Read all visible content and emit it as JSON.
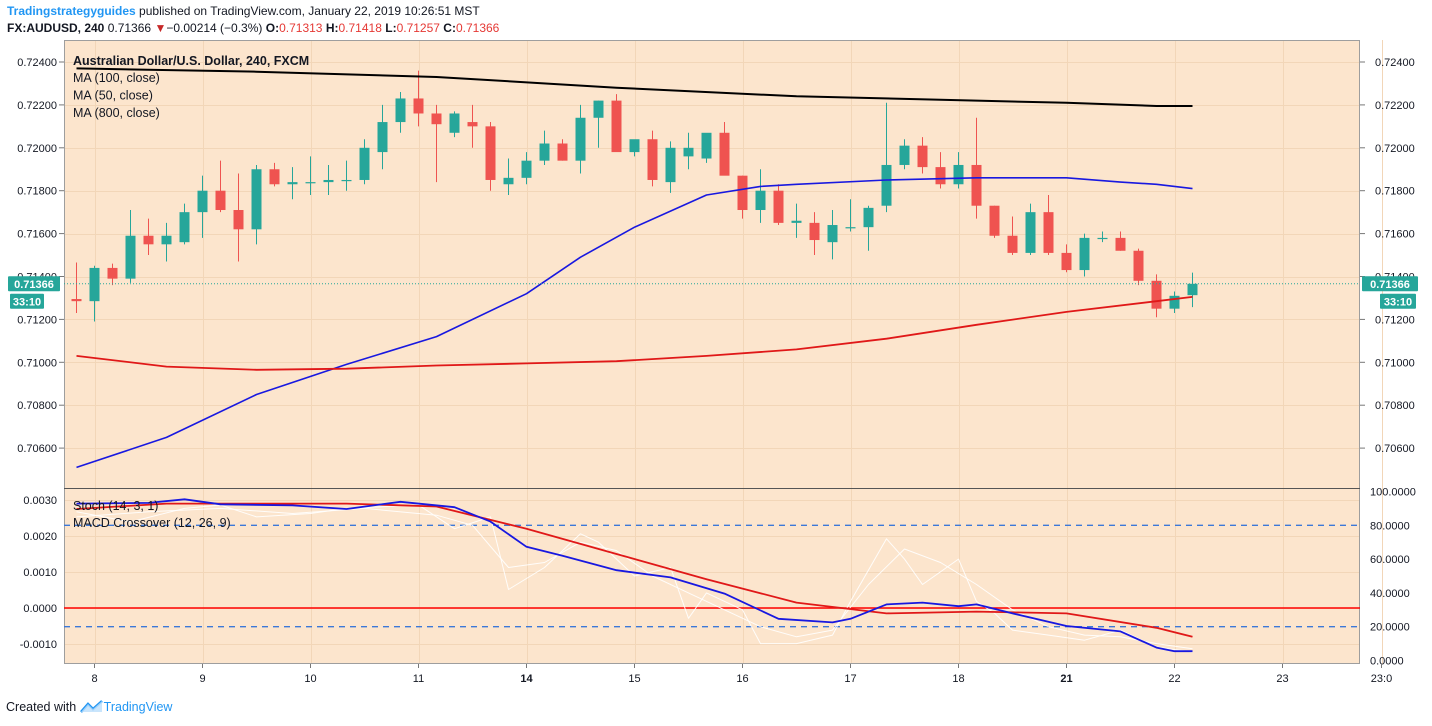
{
  "header": {
    "author": "Tradingstrategyguides",
    "published": "published on TradingView.com, January 22, 2019 10:26:51 MST",
    "symbol": "FX:AUDUSD, 240",
    "last": "0.71366",
    "arrow": "▼",
    "change": "−0.00214 (−0.3%)",
    "o_label": "O:",
    "o_value": "0.71313",
    "h_label": "H:",
    "h_value": "0.71418",
    "l_label": "L:",
    "l_value": "0.71257",
    "c_label": "C:",
    "c_value": "0.71366"
  },
  "footer": {
    "created_with": "Created with",
    "brand": "TradingView"
  },
  "colors": {
    "bg": "#fce5cd",
    "up": "#26a69a",
    "down": "#ef5350",
    "ma100": "#000000",
    "ma50": "#1818e0",
    "ma800": "#e01818",
    "macd": "#1818e0",
    "signal": "#e01818",
    "stoch": "#ffffff",
    "band": "#3c78d8"
  },
  "chart_data": [
    {
      "type": "candlestick",
      "title": "Australian Dollar/U.S. Dollar, 240, FXCM",
      "legend": [
        "MA (100, close)",
        "MA (50, close)",
        "MA (800, close)"
      ],
      "x_ticks": [
        {
          "label": "8",
          "bar": 1,
          "bold": false
        },
        {
          "label": "9",
          "bar": 7,
          "bold": false
        },
        {
          "label": "10",
          "bar": 13,
          "bold": false
        },
        {
          "label": "11",
          "bar": 19,
          "bold": false
        },
        {
          "label": "14",
          "bar": 25,
          "bold": true
        },
        {
          "label": "15",
          "bar": 31,
          "bold": false
        },
        {
          "label": "16",
          "bar": 37,
          "bold": false
        },
        {
          "label": "17",
          "bar": 43,
          "bold": false
        },
        {
          "label": "18",
          "bar": 49,
          "bold": false
        },
        {
          "label": "21",
          "bar": 55,
          "bold": true
        },
        {
          "label": "22",
          "bar": 61,
          "bold": false
        },
        {
          "label": "23",
          "bar": 67,
          "bold": false
        },
        {
          "label": "23:0",
          "bar": 72.5,
          "bold": false
        }
      ],
      "y_ticks": [
        "0.72400",
        "0.72200",
        "0.72000",
        "0.71800",
        "0.71600",
        "0.71400",
        "0.71200",
        "0.71000",
        "0.70800",
        "0.70600"
      ],
      "ylim": [
        0.7048,
        0.725
      ],
      "last_price": {
        "label": "0.71366",
        "value": 0.71366,
        "countdown": "33:10"
      },
      "candles": [
        {
          "o": 0.71295,
          "h": 0.71465,
          "l": 0.7123,
          "c": 0.71285
        },
        {
          "o": 0.71285,
          "h": 0.7145,
          "l": 0.7119,
          "c": 0.7144
        },
        {
          "o": 0.7144,
          "h": 0.7146,
          "l": 0.7136,
          "c": 0.7139
        },
        {
          "o": 0.7139,
          "h": 0.7171,
          "l": 0.7137,
          "c": 0.7159
        },
        {
          "o": 0.7159,
          "h": 0.7167,
          "l": 0.715,
          "c": 0.7155
        },
        {
          "o": 0.7155,
          "h": 0.7165,
          "l": 0.7147,
          "c": 0.7159
        },
        {
          "o": 0.7156,
          "h": 0.7174,
          "l": 0.7155,
          "c": 0.717
        },
        {
          "o": 0.717,
          "h": 0.7187,
          "l": 0.7158,
          "c": 0.718
        },
        {
          "o": 0.718,
          "h": 0.7194,
          "l": 0.717,
          "c": 0.7171
        },
        {
          "o": 0.7171,
          "h": 0.7188,
          "l": 0.7147,
          "c": 0.7162
        },
        {
          "o": 0.7162,
          "h": 0.7192,
          "l": 0.7155,
          "c": 0.719
        },
        {
          "o": 0.719,
          "h": 0.7193,
          "l": 0.7182,
          "c": 0.7183
        },
        {
          "o": 0.7183,
          "h": 0.7191,
          "l": 0.7176,
          "c": 0.7184
        },
        {
          "o": 0.7184,
          "h": 0.7196,
          "l": 0.7178,
          "c": 0.7184
        },
        {
          "o": 0.7184,
          "h": 0.7192,
          "l": 0.7178,
          "c": 0.7185
        },
        {
          "o": 0.7185,
          "h": 0.7194,
          "l": 0.718,
          "c": 0.7185
        },
        {
          "o": 0.7185,
          "h": 0.7204,
          "l": 0.7183,
          "c": 0.72
        },
        {
          "o": 0.7198,
          "h": 0.722,
          "l": 0.719,
          "c": 0.7212
        },
        {
          "o": 0.7212,
          "h": 0.7226,
          "l": 0.7207,
          "c": 0.7223
        },
        {
          "o": 0.7223,
          "h": 0.7236,
          "l": 0.721,
          "c": 0.7216
        },
        {
          "o": 0.7216,
          "h": 0.722,
          "l": 0.7184,
          "c": 0.7211
        },
        {
          "o": 0.7207,
          "h": 0.7217,
          "l": 0.7205,
          "c": 0.7216
        },
        {
          "o": 0.7212,
          "h": 0.722,
          "l": 0.72,
          "c": 0.721
        },
        {
          "o": 0.721,
          "h": 0.7212,
          "l": 0.718,
          "c": 0.7185
        },
        {
          "o": 0.7183,
          "h": 0.7195,
          "l": 0.7178,
          "c": 0.7186
        },
        {
          "o": 0.7186,
          "h": 0.7198,
          "l": 0.7183,
          "c": 0.7194
        },
        {
          "o": 0.7194,
          "h": 0.7208,
          "l": 0.7192,
          "c": 0.7202
        },
        {
          "o": 0.7202,
          "h": 0.7204,
          "l": 0.7194,
          "c": 0.7194
        },
        {
          "o": 0.7194,
          "h": 0.722,
          "l": 0.7188,
          "c": 0.7214
        },
        {
          "o": 0.7214,
          "h": 0.7222,
          "l": 0.72,
          "c": 0.7222
        },
        {
          "o": 0.7222,
          "h": 0.7225,
          "l": 0.72,
          "c": 0.7198
        },
        {
          "o": 0.7198,
          "h": 0.7203,
          "l": 0.7196,
          "c": 0.7204
        },
        {
          "o": 0.7204,
          "h": 0.7208,
          "l": 0.7182,
          "c": 0.7185
        },
        {
          "o": 0.7184,
          "h": 0.7203,
          "l": 0.7179,
          "c": 0.72
        },
        {
          "o": 0.7196,
          "h": 0.7207,
          "l": 0.719,
          "c": 0.72
        },
        {
          "o": 0.7195,
          "h": 0.7206,
          "l": 0.7193,
          "c": 0.7207
        },
        {
          "o": 0.7207,
          "h": 0.7212,
          "l": 0.7188,
          "c": 0.7187
        },
        {
          "o": 0.7187,
          "h": 0.7187,
          "l": 0.7167,
          "c": 0.7171
        },
        {
          "o": 0.7171,
          "h": 0.719,
          "l": 0.7165,
          "c": 0.718
        },
        {
          "o": 0.718,
          "h": 0.7183,
          "l": 0.7164,
          "c": 0.7165
        },
        {
          "o": 0.7165,
          "h": 0.7174,
          "l": 0.7158,
          "c": 0.7166
        },
        {
          "o": 0.7165,
          "h": 0.717,
          "l": 0.715,
          "c": 0.7157
        },
        {
          "o": 0.7156,
          "h": 0.7171,
          "l": 0.7148,
          "c": 0.7164
        },
        {
          "o": 0.7163,
          "h": 0.7176,
          "l": 0.7161,
          "c": 0.7163
        },
        {
          "o": 0.7163,
          "h": 0.7173,
          "l": 0.7152,
          "c": 0.7172
        },
        {
          "o": 0.7173,
          "h": 0.7221,
          "l": 0.717,
          "c": 0.7192
        },
        {
          "o": 0.7192,
          "h": 0.7204,
          "l": 0.719,
          "c": 0.7201
        },
        {
          "o": 0.7201,
          "h": 0.7205,
          "l": 0.7188,
          "c": 0.7191
        },
        {
          "o": 0.7191,
          "h": 0.7198,
          "l": 0.7181,
          "c": 0.7183
        },
        {
          "o": 0.7183,
          "h": 0.7198,
          "l": 0.7181,
          "c": 0.7192
        },
        {
          "o": 0.7192,
          "h": 0.7214,
          "l": 0.7167,
          "c": 0.7173
        },
        {
          "o": 0.7173,
          "h": 0.7173,
          "l": 0.7158,
          "c": 0.7159
        },
        {
          "o": 0.7159,
          "h": 0.7168,
          "l": 0.715,
          "c": 0.7151
        },
        {
          "o": 0.7151,
          "h": 0.7174,
          "l": 0.715,
          "c": 0.717
        },
        {
          "o": 0.717,
          "h": 0.7178,
          "l": 0.715,
          "c": 0.7151
        },
        {
          "o": 0.7151,
          "h": 0.7155,
          "l": 0.7142,
          "c": 0.7143
        },
        {
          "o": 0.7143,
          "h": 0.716,
          "l": 0.714,
          "c": 0.7158
        },
        {
          "o": 0.7158,
          "h": 0.7161,
          "l": 0.7156,
          "c": 0.7158
        },
        {
          "o": 0.7158,
          "h": 0.7161,
          "l": 0.7152,
          "c": 0.7152
        },
        {
          "o": 0.7152,
          "h": 0.7153,
          "l": 0.7136,
          "c": 0.7138
        },
        {
          "o": 0.7138,
          "h": 0.7141,
          "l": 0.7121,
          "c": 0.7125
        },
        {
          "o": 0.7125,
          "h": 0.7133,
          "l": 0.7123,
          "c": 0.7131
        },
        {
          "o": 0.71313,
          "h": 0.71418,
          "l": 0.71257,
          "c": 0.71366
        }
      ],
      "series": [
        {
          "name": "MA (100, close)",
          "color": "#000000",
          "bars": [
            0,
            10,
            20,
            30,
            40,
            50,
            55,
            60,
            62
          ],
          "values": [
            0.7237,
            0.72355,
            0.7233,
            0.7228,
            0.7224,
            0.7222,
            0.7221,
            0.72195,
            0.72195
          ]
        },
        {
          "name": "MA (50, close)",
          "color": "#1818e0",
          "bars": [
            0,
            5,
            10,
            15,
            20,
            25,
            28,
            31,
            35,
            38,
            40,
            45,
            50,
            55,
            58,
            60,
            62
          ],
          "values": [
            0.7051,
            0.7065,
            0.7085,
            0.7099,
            0.7112,
            0.7132,
            0.7149,
            0.7163,
            0.7178,
            0.7182,
            0.7183,
            0.7185,
            0.7186,
            0.7186,
            0.7184,
            0.7183,
            0.7181
          ]
        },
        {
          "name": "MA (800, close)",
          "color": "#e01818",
          "bars": [
            0,
            5,
            10,
            15,
            20,
            25,
            30,
            35,
            40,
            45,
            50,
            55,
            60,
            62
          ],
          "values": [
            0.7103,
            0.7098,
            0.70965,
            0.7097,
            0.70985,
            0.70995,
            0.71005,
            0.7103,
            0.7106,
            0.7111,
            0.71175,
            0.71235,
            0.71285,
            0.71305
          ]
        }
      ]
    },
    {
      "type": "line",
      "legend": [
        "Stoch (14, 3, 1)",
        "MACD Crossover (12, 26, 9)"
      ],
      "left_ticks": [
        "0.0030",
        "0.0020",
        "0.0010",
        "0.0000",
        "-0.0010"
      ],
      "left_lim": [
        -0.00125,
        0.00305
      ],
      "right_ticks": [
        "100.0000",
        "80.0000",
        "60.0000",
        "40.0000",
        "20.0000",
        "0.0000"
      ],
      "right_lim": [
        0,
        100
      ],
      "stoch_bands": [
        20,
        80
      ],
      "macd": {
        "name": "MACD",
        "color": "#1818e0",
        "bars": [
          0,
          4,
          6,
          8,
          12,
          15,
          18,
          21,
          23,
          25,
          27,
          30,
          33,
          36,
          39,
          42,
          43,
          45,
          47,
          49,
          50,
          52,
          55,
          58,
          60,
          61,
          62
        ],
        "values": [
          0.0029,
          0.00292,
          0.00302,
          0.00288,
          0.00285,
          0.00275,
          0.00295,
          0.0028,
          0.0024,
          0.0017,
          0.00145,
          0.00105,
          0.00085,
          0.0004,
          -0.0003,
          -0.0004,
          -0.0003,
          0.0001,
          0.00015,
          5e-05,
          0.0001,
          -0.00015,
          -0.0005,
          -0.00065,
          -0.0011,
          -0.0012,
          -0.0012
        ]
      },
      "signal": {
        "name": "Signal",
        "color": "#e01818",
        "bars": [
          0,
          5,
          10,
          15,
          20,
          25,
          30,
          35,
          40,
          45,
          50,
          55,
          60,
          62
        ],
        "values": [
          0.00275,
          0.0029,
          0.0029,
          0.0029,
          0.00282,
          0.0022,
          0.0015,
          0.0008,
          0.00015,
          -0.00015,
          -0.0001,
          -0.00015,
          -0.00055,
          -0.0008
        ]
      },
      "zero_line": 0,
      "stoch_k": {
        "bars": [
          0,
          3,
          6,
          8,
          10,
          13,
          15,
          19,
          21,
          23,
          24,
          26,
          28,
          29,
          31,
          33,
          34,
          35,
          37,
          38,
          40,
          42,
          43,
          45,
          46,
          47,
          49,
          50,
          51,
          52,
          54,
          56,
          58,
          60,
          62
        ],
        "values": [
          88,
          82,
          90,
          92,
          85,
          87,
          90,
          92,
          78,
          85,
          42,
          55,
          75,
          70,
          50,
          55,
          25,
          40,
          30,
          10,
          10,
          15,
          35,
          72,
          60,
          45,
          60,
          35,
          28,
          18,
          15,
          12,
          18,
          8,
          5
        ]
      },
      "stoch_d": {
        "bars": [
          0,
          4,
          8,
          12,
          16,
          20,
          22,
          24,
          26,
          28,
          30,
          32,
          34,
          36,
          38,
          40,
          42,
          44,
          46,
          48,
          50,
          52,
          54,
          56,
          58,
          60,
          62
        ],
        "values": [
          85,
          88,
          90,
          87,
          90,
          86,
          80,
          55,
          58,
          70,
          65,
          50,
          40,
          30,
          20,
          14,
          18,
          45,
          66,
          58,
          45,
          30,
          20,
          15,
          14,
          10,
          7
        ]
      }
    }
  ]
}
